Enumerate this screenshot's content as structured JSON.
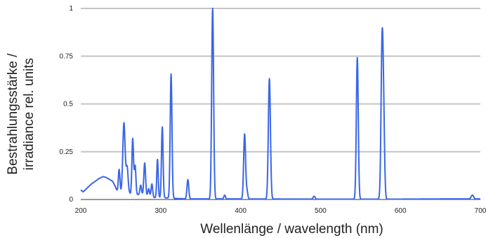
{
  "chart_data": {
    "type": "line",
    "title": "",
    "xlabel": "Wellenlänge / wavelength (nm)",
    "ylabel": [
      "Bestrahlungsstärke /",
      "irradiance rel. units"
    ],
    "xlim": [
      200,
      700
    ],
    "ylim": [
      0,
      1
    ],
    "x_ticks": [
      200,
      300,
      400,
      500,
      600,
      700
    ],
    "y_ticks": [
      0,
      0.25,
      0.5,
      0.75,
      1
    ],
    "y_tick_labels": [
      "0",
      "0.25",
      "0.5",
      "0.75",
      "1"
    ],
    "grid": true,
    "color": "#3a66e6",
    "series": [
      {
        "background": [
          [
            200,
            0.05
          ],
          [
            203,
            0.04
          ],
          [
            208,
            0.06
          ],
          [
            213,
            0.08
          ],
          [
            218,
            0.095
          ],
          [
            223,
            0.11
          ],
          [
            228,
            0.12
          ],
          [
            232,
            0.115
          ],
          [
            236,
            0.105
          ],
          [
            240,
            0.095
          ],
          [
            243,
            0.07
          ],
          [
            246,
            0.04
          ],
          [
            250,
            0.035
          ],
          [
            256,
            0.06
          ],
          [
            262,
            0.03
          ],
          [
            270,
            0.025
          ],
          [
            275,
            0.025
          ],
          [
            282,
            0.02
          ],
          [
            290,
            0.01
          ],
          [
            300,
            0.01
          ],
          [
            320,
            0.005
          ],
          [
            340,
            0.003
          ],
          [
            400,
            0.003
          ],
          [
            500,
            0.002
          ],
          [
            600,
            0.002
          ],
          [
            650,
            0.003
          ],
          [
            700,
            0.003
          ]
        ],
        "peaks": [
          [
            248,
            0.12,
            1.0
          ],
          [
            254,
            0.35,
            1.4
          ],
          [
            258,
            0.12,
            1.2
          ],
          [
            265,
            0.29,
            1.0
          ],
          [
            268,
            0.15,
            1.0
          ],
          [
            275,
            0.05,
            1.0
          ],
          [
            280,
            0.17,
            1.1
          ],
          [
            285,
            0.04,
            1.0
          ],
          [
            289,
            0.07,
            1.0
          ],
          [
            296,
            0.2,
            0.9
          ],
          [
            302,
            0.37,
            1.0
          ],
          [
            313,
            0.65,
            1.1
          ],
          [
            334,
            0.1,
            1.1
          ],
          [
            365,
            1.0,
            1.2
          ],
          [
            380,
            0.02,
            1.0
          ],
          [
            405,
            0.34,
            1.2
          ],
          [
            408,
            0.04,
            1.0
          ],
          [
            436,
            0.63,
            1.3
          ],
          [
            492,
            0.015,
            1.2
          ],
          [
            546,
            0.74,
            1.2
          ],
          [
            577,
            0.79,
            1.3
          ],
          [
            579,
            0.35,
            1.2
          ],
          [
            690,
            0.02,
            1.5
          ]
        ]
      }
    ]
  }
}
